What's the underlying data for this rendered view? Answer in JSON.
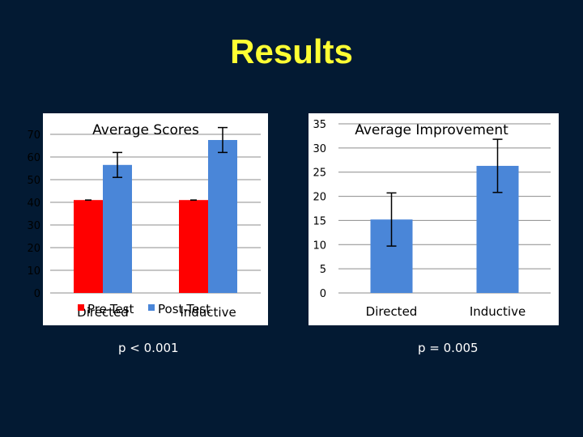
{
  "slide": {
    "title": "Results",
    "captions": [
      "p < 0.001",
      "p = 0.005"
    ]
  },
  "chart_data": [
    {
      "type": "bar",
      "title": "Average Scores",
      "categories": [
        "Directed",
        "Inductive"
      ],
      "series": [
        {
          "name": "Pre-Test",
          "values": [
            41,
            41
          ],
          "errors": [
            0,
            0
          ],
          "color": "#ff0000"
        },
        {
          "name": "Post-Test",
          "values": [
            56.5,
            67.5
          ],
          "errors": [
            5.5,
            5.5
          ],
          "color": "#4a86d8"
        }
      ],
      "ylim": [
        0,
        70
      ],
      "yticks": [
        "0",
        "10",
        "20",
        "30",
        "40",
        "50",
        "60",
        "70"
      ],
      "grid": true,
      "legend": "bottom",
      "xlabel": "",
      "ylabel": ""
    },
    {
      "type": "bar",
      "title": "Average Improvement",
      "categories": [
        "Directed",
        "Inductive"
      ],
      "series": [
        {
          "values": [
            15.2,
            26.3
          ],
          "errors": [
            5.5,
            5.5
          ],
          "color": "#4a86d8"
        }
      ],
      "ylim": [
        0,
        35
      ],
      "yticks": [
        "0",
        "5",
        "10",
        "15",
        "20",
        "25",
        "30",
        "35"
      ],
      "grid": true,
      "legend": "none",
      "xlabel": "",
      "ylabel": ""
    }
  ]
}
